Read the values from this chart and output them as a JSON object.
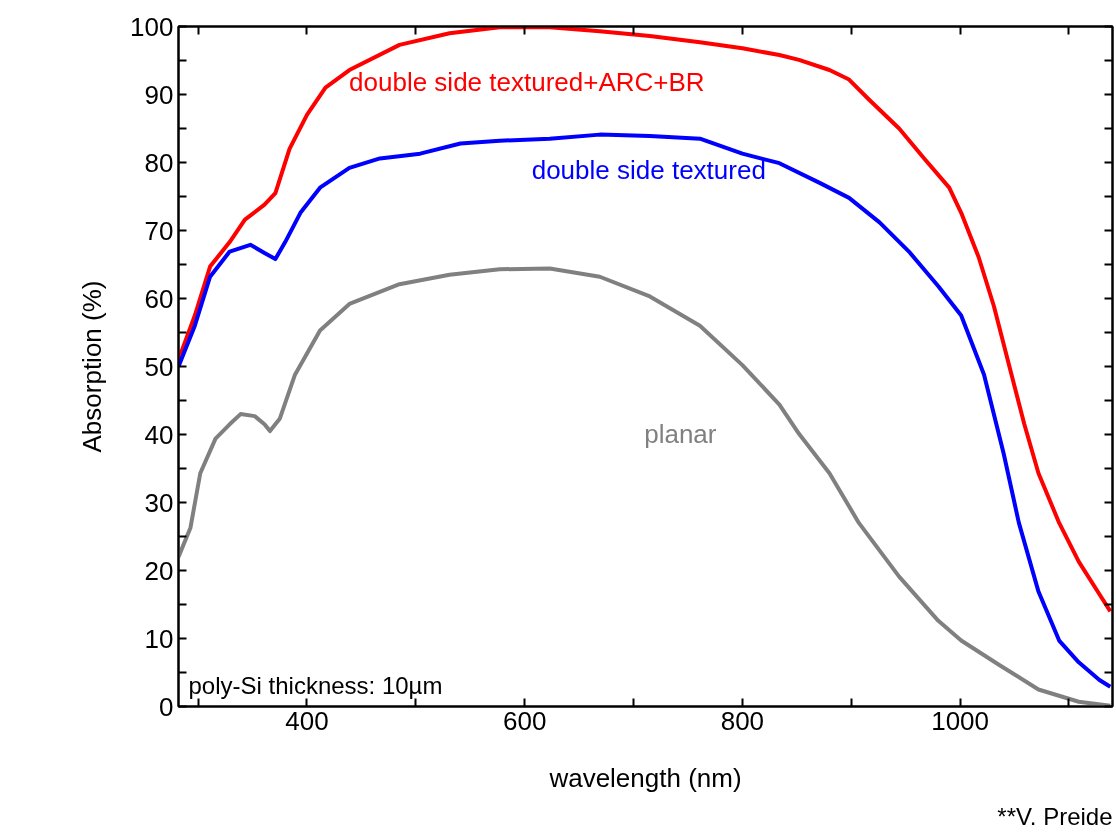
{
  "chart_data": {
    "type": "line",
    "xlabel": "wavelength (nm)",
    "ylabel": "Absorption (%)",
    "xlim": [
      282,
      1140
    ],
    "ylim": [
      0,
      100
    ],
    "xticks": [
      {
        "value": 300,
        "label": null
      },
      400,
      {
        "value": 500,
        "label": null
      },
      600,
      {
        "value": 700,
        "label": null
      },
      800,
      {
        "value": 900,
        "label": null
      },
      1000,
      {
        "value": 1100,
        "label": null
      }
    ],
    "yticks": [
      0,
      {
        "value": 5,
        "label": null
      },
      10,
      {
        "value": 15,
        "label": null
      },
      20,
      {
        "value": 25,
        "label": null
      },
      30,
      {
        "value": 35,
        "label": null
      },
      40,
      {
        "value": 45,
        "label": null
      },
      50,
      {
        "value": 55,
        "label": null
      },
      60,
      {
        "value": 65,
        "label": null
      },
      70,
      {
        "value": 75,
        "label": null
      },
      80,
      {
        "value": 85,
        "label": null
      },
      90,
      {
        "value": 95,
        "label": null
      },
      100
    ],
    "grid": false,
    "marker": "none",
    "line_style": "solid",
    "series": [
      {
        "name": "double side textured+ARC+BR",
        "color": "#ff0000",
        "x": [
          282,
          297,
          311,
          329,
          343,
          361,
          371,
          384,
          400,
          417,
          439,
          485,
          531,
          577,
          623,
          669,
          715,
          761,
          800,
          834,
          852,
          880,
          898,
          916,
          944,
          967,
          990,
          1001,
          1017,
          1031,
          1045,
          1059,
          1072,
          1091,
          1109,
          1128,
          1138
        ],
        "values": [
          51,
          57.5,
          64.7,
          68.3,
          71.6,
          73.8,
          75.5,
          82,
          87,
          91,
          93.6,
          97.3,
          99,
          99.9,
          99.9,
          99.3,
          98.6,
          97.7,
          96.8,
          95.8,
          95.1,
          93.6,
          92.2,
          89.3,
          85,
          80.6,
          76.3,
          72.6,
          66.1,
          58.9,
          50.2,
          41.5,
          34.3,
          27,
          21.3,
          16.5,
          14
        ]
      },
      {
        "name": "double side textured",
        "color": "#0000ff",
        "x": [
          282,
          297,
          311,
          329,
          348,
          361,
          371,
          380,
          394,
          412,
          439,
          467,
          504,
          541,
          577,
          623,
          669,
          715,
          761,
          800,
          834,
          871,
          898,
          926,
          953,
          980,
          1001,
          1022,
          1040,
          1054,
          1072,
          1091,
          1109,
          1128,
          1138
        ],
        "values": [
          50,
          56,
          63.2,
          66.9,
          67.9,
          66.7,
          65.8,
          68.3,
          72.6,
          76.3,
          79.2,
          80.6,
          81.3,
          82.8,
          83.2,
          83.5,
          84.1,
          83.9,
          83.5,
          81.3,
          79.9,
          77,
          74.8,
          71.2,
          66.9,
          61.8,
          57.5,
          48.8,
          37.2,
          27,
          16.9,
          9.7,
          6.5,
          3.9,
          2.9
        ]
      },
      {
        "name": "planar",
        "color": "#808080",
        "x": [
          282,
          293,
          302,
          316,
          329,
          339,
          352,
          361,
          366,
          375,
          389,
          412,
          439,
          485,
          531,
          577,
          623,
          669,
          715,
          761,
          800,
          834,
          852,
          880,
          907,
          944,
          980,
          1001,
          1036,
          1072,
          1109,
          1138
        ],
        "values": [
          22,
          26.3,
          34.3,
          39.4,
          41.5,
          43,
          42.7,
          41.5,
          40.5,
          42.3,
          48.8,
          55.3,
          59.2,
          62.1,
          63.5,
          64.3,
          64.4,
          63.2,
          60.3,
          56,
          50.2,
          44.4,
          40.1,
          34.3,
          27,
          19.1,
          12.6,
          9.7,
          6.1,
          2.5,
          0.7,
          0.1
        ]
      }
    ],
    "annotations": [
      "poly-Si thickness: 10µm",
      "**V. Preide"
    ]
  }
}
